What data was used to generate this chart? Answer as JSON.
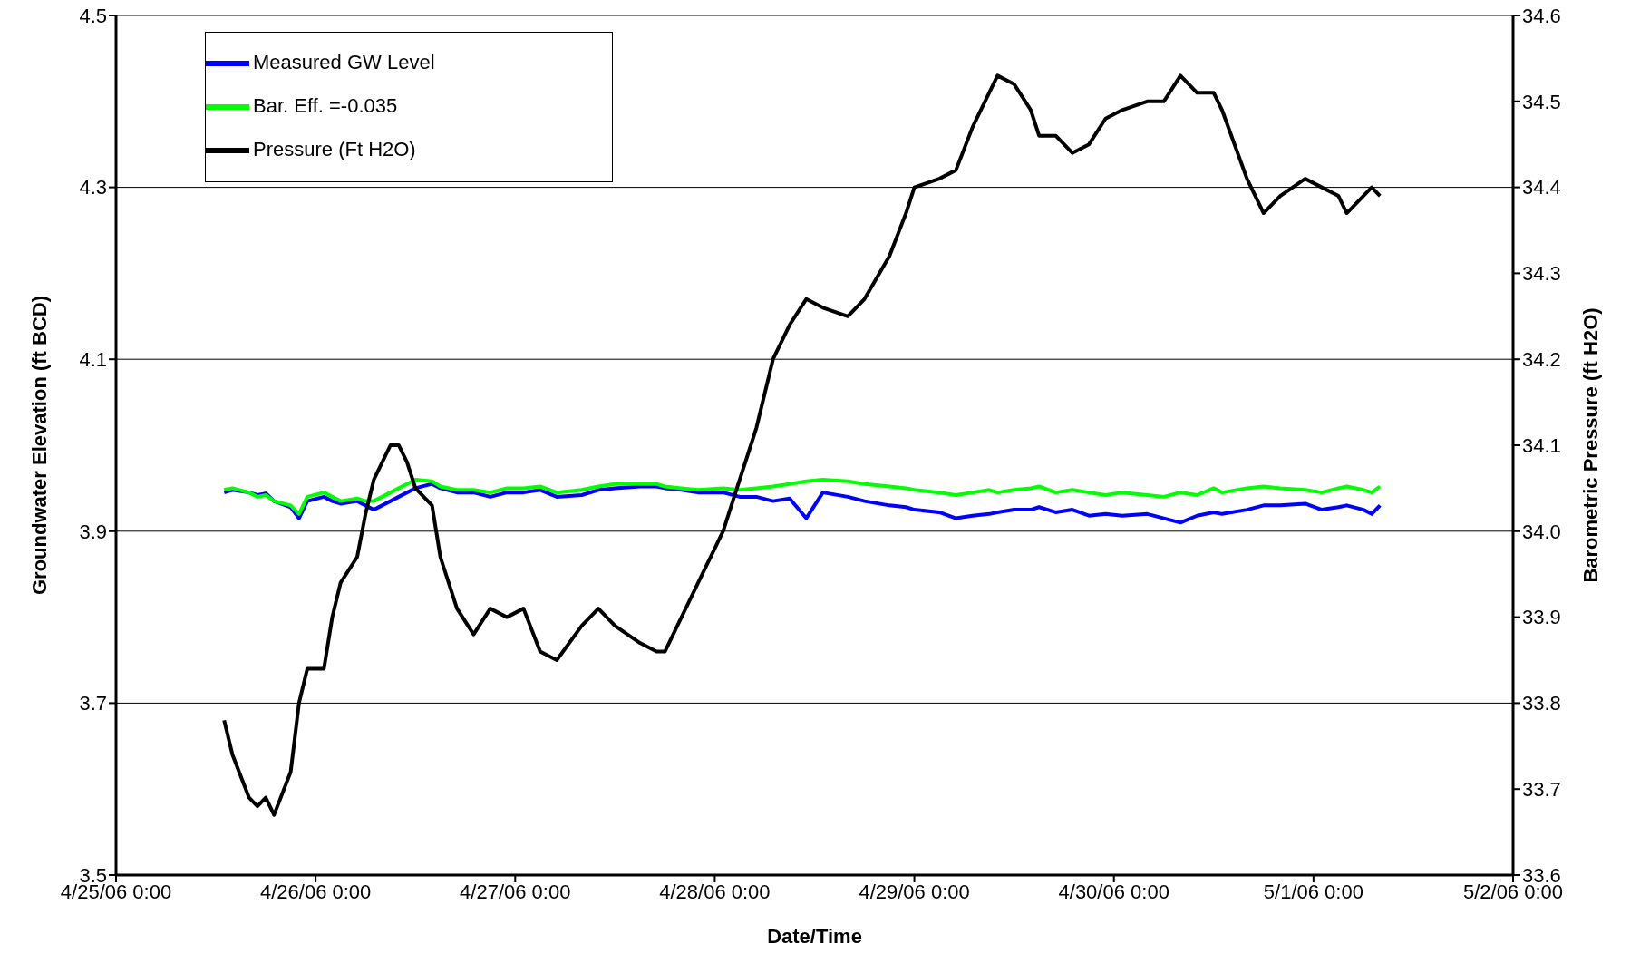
{
  "chart_data": {
    "type": "line",
    "xlabel": "Date/Time",
    "ylabel": "Groundwater Elevation (ft BCD)",
    "y2label": "Barometric Pressure (ft H2O)",
    "x": [
      "--04-25T13:00",
      "--04-25T14:00",
      "--04-25T16:00",
      "--04-25T17:00",
      "--04-25T18:00",
      "--04-25T19:00",
      "--04-25T21:00",
      "--04-25T22:00",
      "--04-25T23:00",
      "--04-26T01:00",
      "--04-26T02:00",
      "--04-26T03:00",
      "--04-26T05:00",
      "--04-26T06:00",
      "--04-26T07:00",
      "--04-26T09:00",
      "--04-26T10:00",
      "--04-26T11:00",
      "--04-26T12:00",
      "--04-26T14:00",
      "--04-26T15:00",
      "--04-26T17:00",
      "--04-26T19:00",
      "--04-26T21:00",
      "--04-26T23:00",
      "--04-27T01:00",
      "--04-27T03:00",
      "--04-27T05:00",
      "--04-27T08:00",
      "--04-27T10:00",
      "--04-27T12:00",
      "--04-27T15:00",
      "--04-27T17:00",
      "--04-27T18:00",
      "--04-27T20:00",
      "--04-27T22:00",
      "--04-28T01:00",
      "--04-28T03:00",
      "--04-28T05:00",
      "--04-28T07:00",
      "--04-28T09:00",
      "--04-28T11:00",
      "--04-28T13:00",
      "--04-28T16:00",
      "--04-28T18:00",
      "--04-28T21:00",
      "--04-28T23:00",
      "--04-29T00:00",
      "--04-29T03:00",
      "--04-29T05:00",
      "--04-29T07:00",
      "--04-29T09:00",
      "--04-29T10:00",
      "--04-29T12:00",
      "--04-29T14:00",
      "--04-29T15:00",
      "--04-29T17:00",
      "--04-29T19:00",
      "--04-29T21:00",
      "--04-29T23:00",
      "--04-30T01:00",
      "--04-30T04:00",
      "--04-30T06:00",
      "--04-30T08:00",
      "--04-30T10:00",
      "--04-30T12:00",
      "--04-30T13:00",
      "--04-30T16:00",
      "--04-30T18:00",
      "--04-30T20:00",
      "--04-30T23:00",
      "--05-01T01:00",
      "--05-01T03:00",
      "--05-01T04:00",
      "--05-01T06:00",
      "--05-01T07:00",
      "--05-01T08:00"
    ],
    "series": [
      {
        "name": "Measured GW Level",
        "color": "#0000ff",
        "values": [
          3.945,
          3.948,
          3.945,
          3.942,
          3.944,
          3.935,
          3.928,
          3.915,
          3.935,
          3.94,
          3.935,
          3.932,
          3.935,
          3.93,
          3.925,
          3.935,
          3.94,
          3.945,
          3.95,
          3.955,
          3.95,
          3.945,
          3.945,
          3.94,
          3.945,
          3.945,
          3.948,
          3.94,
          3.942,
          3.948,
          3.95,
          3.952,
          3.952,
          3.95,
          3.948,
          3.945,
          3.945,
          3.94,
          3.94,
          3.935,
          3.938,
          3.915,
          3.945,
          3.94,
          3.935,
          3.93,
          3.928,
          3.925,
          3.922,
          3.915,
          3.918,
          3.92,
          3.922,
          3.925,
          3.925,
          3.928,
          3.922,
          3.925,
          3.918,
          3.92,
          3.918,
          3.92,
          3.915,
          3.91,
          3.918,
          3.922,
          3.92,
          3.925,
          3.93,
          3.93,
          3.932,
          3.925,
          3.928,
          3.93,
          3.925,
          3.92,
          3.93
        ]
      },
      {
        "name": "Bar. Eff. =-0.035",
        "color": "#00ff00",
        "values": [
          3.948,
          3.95,
          3.945,
          3.94,
          3.942,
          3.935,
          3.93,
          3.92,
          3.94,
          3.945,
          3.94,
          3.935,
          3.938,
          3.935,
          3.935,
          3.945,
          3.95,
          3.955,
          3.96,
          3.958,
          3.952,
          3.948,
          3.948,
          3.945,
          3.95,
          3.95,
          3.952,
          3.945,
          3.948,
          3.952,
          3.955,
          3.955,
          3.955,
          3.952,
          3.95,
          3.948,
          3.95,
          3.948,
          3.95,
          3.952,
          3.955,
          3.958,
          3.96,
          3.958,
          3.955,
          3.952,
          3.95,
          3.948,
          3.945,
          3.942,
          3.945,
          3.948,
          3.945,
          3.948,
          3.95,
          3.952,
          3.945,
          3.948,
          3.945,
          3.942,
          3.945,
          3.942,
          3.94,
          3.945,
          3.942,
          3.95,
          3.945,
          3.95,
          3.952,
          3.95,
          3.948,
          3.945,
          3.95,
          3.952,
          3.948,
          3.945,
          3.952
        ]
      },
      {
        "name": "Pressure (Ft H2O)",
        "color": "#000000",
        "axis": "y2",
        "values": [
          33.78,
          33.74,
          33.69,
          33.68,
          33.69,
          33.67,
          33.72,
          33.8,
          33.84,
          33.84,
          33.9,
          33.94,
          33.97,
          34.02,
          34.06,
          34.1,
          34.1,
          34.08,
          34.05,
          34.03,
          33.97,
          33.91,
          33.88,
          33.91,
          33.9,
          33.91,
          33.86,
          33.85,
          33.89,
          33.91,
          33.89,
          33.87,
          33.86,
          33.86,
          33.9,
          33.94,
          34.0,
          34.06,
          34.12,
          34.2,
          34.24,
          34.27,
          34.26,
          34.25,
          34.27,
          34.32,
          34.37,
          34.4,
          34.41,
          34.42,
          34.47,
          34.51,
          34.53,
          34.52,
          34.49,
          34.46,
          34.46,
          34.44,
          34.45,
          34.48,
          34.49,
          34.5,
          34.5,
          34.53,
          34.51,
          34.51,
          34.49,
          34.41,
          34.37,
          34.39,
          34.41,
          34.4,
          34.39,
          34.37,
          34.39,
          34.4,
          34.39
        ]
      }
    ],
    "xlim": [
      "--04-25T00:00",
      "--05-02T00:00"
    ],
    "xticks": [
      {
        "value": "--04-25T00:00",
        "label": "4/25/06 0:00"
      },
      {
        "value": "--04-26T00:00",
        "label": "4/26/06 0:00"
      },
      {
        "value": "--04-27T00:00",
        "label": "4/27/06 0:00"
      },
      {
        "value": "--04-28T00:00",
        "label": "4/28/06 0:00"
      },
      {
        "value": "--04-29T00:00",
        "label": "4/29/06 0:00"
      },
      {
        "value": "--04-30T00:00",
        "label": "4/30/06 0:00"
      },
      {
        "value": "--05-01T00:00",
        "label": "5/1/06 0:00"
      },
      {
        "value": "--05-02T00:00",
        "label": "5/2/06 0:00"
      }
    ],
    "ylim": [
      3.5,
      4.5
    ],
    "yticks": [
      3.5,
      3.7,
      3.9,
      4.1,
      4.3,
      4.5
    ],
    "y2lim": [
      33.6,
      34.6
    ],
    "y2ticks": [
      33.6,
      33.7,
      33.8,
      33.9,
      {
        "value": 34,
        "label": "34.0"
      },
      34.1,
      34.2,
      34.3,
      34.4,
      34.5,
      34.6
    ],
    "grid": "y",
    "legend": "top left",
    "marker": "none",
    "line_style": "solid"
  }
}
